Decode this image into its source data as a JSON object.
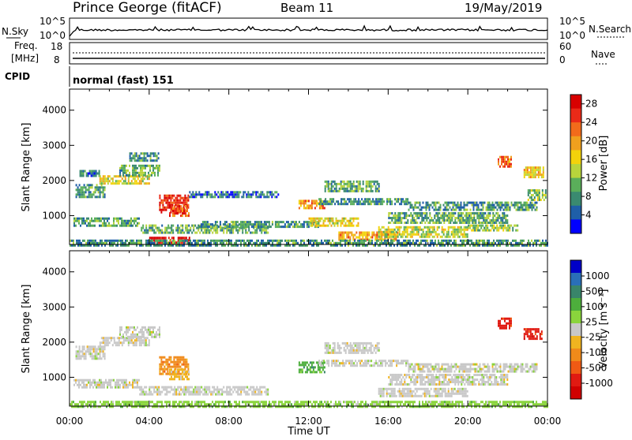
{
  "header": {
    "station": "Prince George (fitACF)",
    "beam": "Beam 11",
    "date": "19/May/2019"
  },
  "noise_panel": {
    "left_label": "N.Sky",
    "right_label": "N.Search",
    "left_ticks": [
      "10^5",
      "10^0"
    ],
    "right_ticks": [
      "10^5",
      "10^0"
    ]
  },
  "freq_panel": {
    "left_label_1": "Freq.",
    "left_label_2": "[MHz]",
    "right_label": "Nave",
    "left_ticks": [
      "18",
      "8"
    ],
    "right_ticks": [
      "60",
      "0"
    ]
  },
  "cpid": {
    "label": "CPID",
    "value": "normal (fast) 151"
  },
  "colors": {
    "power": [
      "#0000ff",
      "#1f5fa8",
      "#3a8a70",
      "#5aae5a",
      "#b8d43c",
      "#f3d20b",
      "#f0a01e",
      "#f26b1b",
      "#ea2a18",
      "#d80000"
    ],
    "velocity": [
      "#0000c8",
      "#2a6fb8",
      "#39856a",
      "#4dae3c",
      "#8ad43c",
      "#c8c8c8",
      "#f0b420",
      "#f08a1a",
      "#f05a14",
      "#e01a12",
      "#d00000"
    ]
  },
  "chart_data": [
    {
      "type": "heatmap",
      "name": "power",
      "ylabel": "Slant Range [km]",
      "ylim": [
        180,
        4600
      ],
      "yticks": [
        "1000",
        "2000",
        "3000",
        "4000"
      ],
      "xlim": [
        0,
        24
      ],
      "xticks": [
        "00:00",
        "04:00",
        "08:00",
        "12:00",
        "16:00",
        "20:00",
        "00:00"
      ],
      "colorbar": {
        "label": "Power [dB]",
        "ticks": [
          "4",
          "8",
          "12",
          "16",
          "20",
          "24",
          "28"
        ],
        "range": [
          0,
          30
        ]
      },
      "regions": [
        {
          "t": [
            0.3,
            1.8
          ],
          "r": [
            1500,
            1900
          ],
          "val": 8
        },
        {
          "t": [
            0.5,
            1.5
          ],
          "r": [
            2100,
            2300
          ],
          "val": 6
        },
        {
          "t": [
            0.2,
            3.5
          ],
          "r": [
            700,
            950
          ],
          "val": 10
        },
        {
          "t": [
            1.5,
            4.0
          ],
          "r": [
            1900,
            2150
          ],
          "val": 16
        },
        {
          "t": [
            2.5,
            4.5
          ],
          "r": [
            2150,
            2450
          ],
          "val": 10
        },
        {
          "t": [
            3.0,
            4.5
          ],
          "r": [
            2550,
            2800
          ],
          "val": 8
        },
        {
          "t": [
            4.5,
            6.0
          ],
          "r": [
            1100,
            1600
          ],
          "val": 26
        },
        {
          "t": [
            5.0,
            6.0
          ],
          "r": [
            1000,
            1300
          ],
          "val": 24
        },
        {
          "t": [
            4.0,
            6.0
          ],
          "r": [
            200,
            400
          ],
          "val": 28
        },
        {
          "t": [
            3.5,
            10.0
          ],
          "r": [
            500,
            750
          ],
          "val": 10
        },
        {
          "t": [
            6.5,
            12.5
          ],
          "r": [
            650,
            850
          ],
          "val": 8
        },
        {
          "t": [
            6.0,
            10.5
          ],
          "r": [
            1500,
            1700
          ],
          "val": 6
        },
        {
          "t": [
            11.5,
            12.8
          ],
          "r": [
            1200,
            1450
          ],
          "val": 20
        },
        {
          "t": [
            12.0,
            14.5
          ],
          "r": [
            700,
            950
          ],
          "val": 16
        },
        {
          "t": [
            12.5,
            17.0
          ],
          "r": [
            1300,
            1500
          ],
          "val": 8
        },
        {
          "t": [
            12.8,
            15.5
          ],
          "r": [
            1700,
            2000
          ],
          "val": 10
        },
        {
          "t": [
            13.5,
            16.5
          ],
          "r": [
            300,
            550
          ],
          "val": 20
        },
        {
          "t": [
            15.5,
            20.0
          ],
          "r": [
            400,
            700
          ],
          "val": 14
        },
        {
          "t": [
            16.0,
            22.0
          ],
          "r": [
            800,
            1100
          ],
          "val": 10
        },
        {
          "t": [
            17.0,
            23.5
          ],
          "r": [
            1150,
            1400
          ],
          "val": 8
        },
        {
          "t": [
            20.0,
            22.5
          ],
          "r": [
            550,
            750
          ],
          "val": 12
        },
        {
          "t": [
            21.5,
            22.2
          ],
          "r": [
            2400,
            2700
          ],
          "val": 22
        },
        {
          "t": [
            22.8,
            23.8
          ],
          "r": [
            2100,
            2400
          ],
          "val": 18
        },
        {
          "t": [
            23.0,
            23.9
          ],
          "r": [
            1450,
            1750
          ],
          "val": 12
        },
        {
          "t": [
            0.0,
            24.0
          ],
          "r": [
            180,
            320
          ],
          "val": 8
        }
      ]
    },
    {
      "type": "heatmap",
      "name": "velocity",
      "ylabel": "Slant Range [km]",
      "ylim": [
        180,
        4600
      ],
      "yticks": [
        "1000",
        "2000",
        "3000",
        "4000"
      ],
      "xlim": [
        0,
        24
      ],
      "xticks": [
        "00:00",
        "04:00",
        "08:00",
        "12:00",
        "16:00",
        "20:00",
        "00:00"
      ],
      "xlabel": "Time UT",
      "colorbar": {
        "label": "Velocity [m s⁻¹]",
        "ticks": [
          "1000",
          "500",
          "100",
          "25",
          "-25",
          "-100",
          "-500",
          "-1000"
        ]
      },
      "regions": [
        {
          "t": [
            0.3,
            1.8
          ],
          "r": [
            1500,
            1900
          ],
          "cls": 5
        },
        {
          "t": [
            1.5,
            4.0
          ],
          "r": [
            1900,
            2150
          ],
          "cls": 5
        },
        {
          "t": [
            2.5,
            4.5
          ],
          "r": [
            2150,
            2450
          ],
          "cls": 5
        },
        {
          "t": [
            0.2,
            3.5
          ],
          "r": [
            700,
            950
          ],
          "cls": 5
        },
        {
          "t": [
            4.5,
            6.0
          ],
          "r": [
            1100,
            1600
          ],
          "cls": 7
        },
        {
          "t": [
            5.0,
            6.0
          ],
          "r": [
            950,
            1250
          ],
          "cls": 6
        },
        {
          "t": [
            3.5,
            10.0
          ],
          "r": [
            500,
            750
          ],
          "cls": 5
        },
        {
          "t": [
            11.5,
            12.8
          ],
          "r": [
            1150,
            1450
          ],
          "cls": 3
        },
        {
          "t": [
            12.8,
            15.5
          ],
          "r": [
            1700,
            2000
          ],
          "cls": 5
        },
        {
          "t": [
            12.5,
            17.0
          ],
          "r": [
            1300,
            1500
          ],
          "cls": 5
        },
        {
          "t": [
            15.5,
            20.0
          ],
          "r": [
            450,
            700
          ],
          "cls": 5
        },
        {
          "t": [
            16.0,
            22.0
          ],
          "r": [
            800,
            1100
          ],
          "cls": 5
        },
        {
          "t": [
            17.0,
            23.5
          ],
          "r": [
            1150,
            1400
          ],
          "cls": 5
        },
        {
          "t": [
            21.5,
            22.2
          ],
          "r": [
            2400,
            2700
          ],
          "cls": 9
        },
        {
          "t": [
            22.8,
            23.8
          ],
          "r": [
            2100,
            2400
          ],
          "cls": 9
        },
        {
          "t": [
            0.0,
            24.0
          ],
          "r": [
            180,
            330
          ],
          "cls": 4
        }
      ]
    }
  ]
}
